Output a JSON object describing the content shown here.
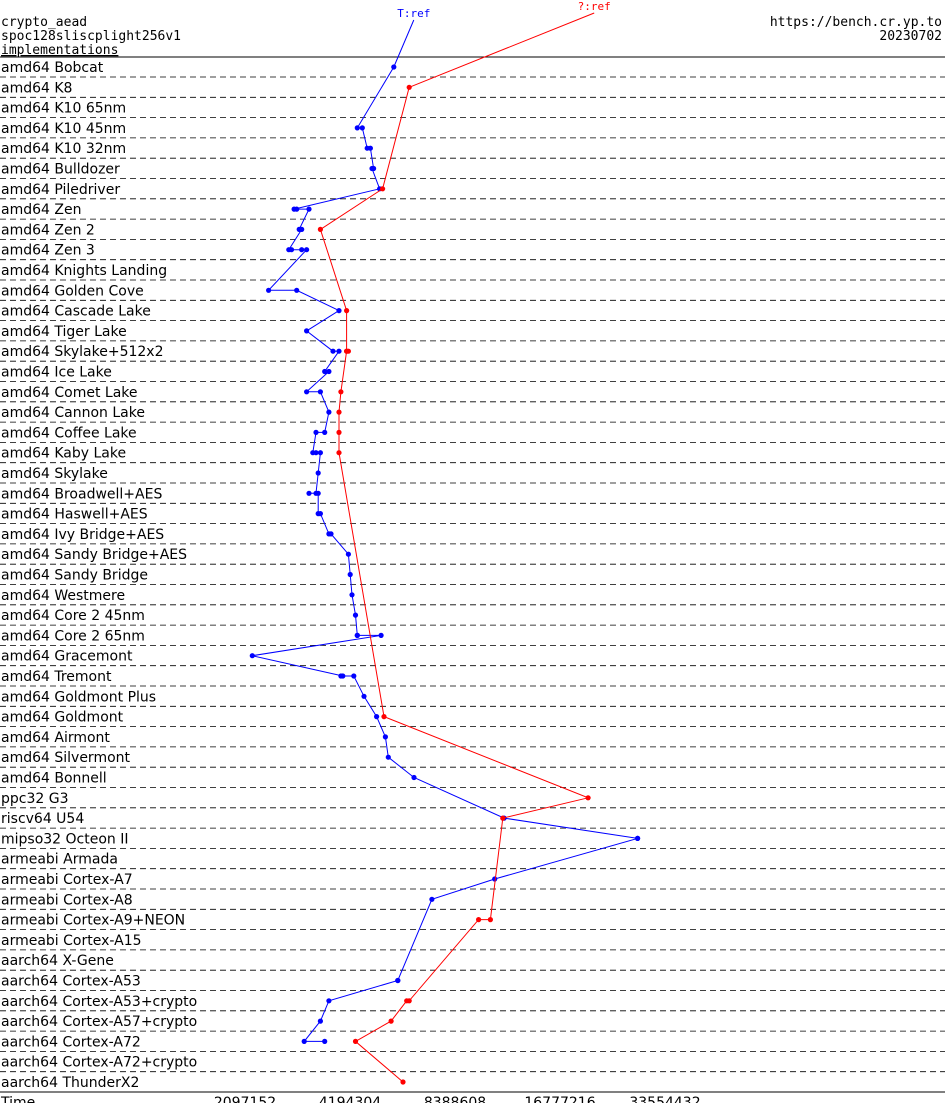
{
  "header": {
    "left_lines": [
      "crypto_aead",
      "spoc128sliscplight256v1",
      "implementations"
    ],
    "right_lines": [
      "https://bench.cr.yp.to",
      "20230702"
    ]
  },
  "chart_data": {
    "type": "line",
    "x_scale": "log2",
    "xlabel": "Time",
    "xlim": [
      1048576,
      67108864
    ],
    "x_ticks": [
      2097152,
      4194304,
      8388608,
      16777216,
      33554432
    ],
    "x_tick_labels": [
      "2097152",
      "4194304",
      "8388608",
      "16777216",
      "33554432"
    ],
    "grid": true,
    "categories": [
      "amd64 Bobcat",
      "amd64 K8",
      "amd64 K10 65nm",
      "amd64 K10 45nm",
      "amd64 K10 32nm",
      "amd64 Bulldozer",
      "amd64 Piledriver",
      "amd64 Zen",
      "amd64 Zen 2",
      "amd64 Zen 3",
      "amd64 Knights Landing",
      "amd64 Golden Cove",
      "amd64 Cascade Lake",
      "amd64 Tiger Lake",
      "amd64 Skylake+512x2",
      "amd64 Ice Lake",
      "amd64 Comet Lake",
      "amd64 Cannon Lake",
      "amd64 Coffee Lake",
      "amd64 Kaby Lake",
      "amd64 Skylake",
      "amd64 Broadwell+AES",
      "amd64 Haswell+AES",
      "amd64 Ivy Bridge+AES",
      "amd64 Sandy Bridge+AES",
      "amd64 Sandy Bridge",
      "amd64 Westmere",
      "amd64 Core 2 45nm",
      "amd64 Core 2 65nm",
      "amd64 Gracemont",
      "amd64 Tremont",
      "amd64 Goldmont Plus",
      "amd64 Goldmont",
      "amd64 Airmont",
      "amd64 Silvermont",
      "amd64 Bonnell",
      "ppc32 G3",
      "riscv64 U54",
      "mipso32 Octeon II",
      "armeabi Armada",
      "armeabi Cortex-A7",
      "armeabi Cortex-A8",
      "armeabi Cortex-A9+NEON",
      "armeabi Cortex-A15",
      "aarch64 X-Gene",
      "aarch64 Cortex-A53",
      "aarch64 Cortex-A53+crypto",
      "aarch64 Cortex-A57+crypto",
      "aarch64 Cortex-A72",
      "aarch64 Cortex-A72+crypto",
      "aarch64 ThunderX2"
    ],
    "series": [
      {
        "name": "T:ref",
        "color": "#0000ff",
        "points": [
          {
            "row": "amd64 Bobcat",
            "x": 5600000
          },
          {
            "row": "amd64 K10 45nm",
            "x": 4400000
          },
          {
            "row": "amd64 K10 45nm",
            "x": 4550000
          },
          {
            "row": "amd64 K10 32nm",
            "x": 4700000
          },
          {
            "row": "amd64 K10 32nm",
            "x": 4800000
          },
          {
            "row": "amd64 Bulldozer",
            "x": 4900000
          },
          {
            "row": "amd64 Bulldozer",
            "x": 4850000
          },
          {
            "row": "amd64 Piledriver",
            "x": 5100000
          },
          {
            "row": "amd64 Zen",
            "x": 2900000
          },
          {
            "row": "amd64 Zen",
            "x": 2950000
          },
          {
            "row": "amd64 Zen",
            "x": 3200000
          },
          {
            "row": "amd64 Zen 2",
            "x": 3000000
          },
          {
            "row": "amd64 Zen 2",
            "x": 3050000
          },
          {
            "row": "amd64 Zen 3",
            "x": 2800000
          },
          {
            "row": "amd64 Zen 3",
            "x": 2850000
          },
          {
            "row": "amd64 Zen 3",
            "x": 3050000
          },
          {
            "row": "amd64 Zen 3",
            "x": 3150000
          },
          {
            "row": "amd64 Golden Cove",
            "x": 2450000
          },
          {
            "row": "amd64 Golden Cove",
            "x": 2950000
          },
          {
            "row": "amd64 Cascade Lake",
            "x": 3900000
          },
          {
            "row": "amd64 Tiger Lake",
            "x": 3150000
          },
          {
            "row": "amd64 Skylake+512x2",
            "x": 3750000
          },
          {
            "row": "amd64 Skylake+512x2",
            "x": 3900000
          },
          {
            "row": "amd64 Ice Lake",
            "x": 3550000
          },
          {
            "row": "amd64 Ice Lake",
            "x": 3650000
          },
          {
            "row": "amd64 Comet Lake",
            "x": 3150000
          },
          {
            "row": "amd64 Comet Lake",
            "x": 3450000
          },
          {
            "row": "amd64 Cannon Lake",
            "x": 3650000
          },
          {
            "row": "amd64 Coffee Lake",
            "x": 3550000
          },
          {
            "row": "amd64 Coffee Lake",
            "x": 3350000
          },
          {
            "row": "amd64 Kaby Lake",
            "x": 3280000
          },
          {
            "row": "amd64 Kaby Lake",
            "x": 3350000
          },
          {
            "row": "amd64 Kaby Lake",
            "x": 3450000
          },
          {
            "row": "amd64 Skylake",
            "x": 3400000
          },
          {
            "row": "amd64 Broadwell+AES",
            "x": 3350000
          },
          {
            "row": "amd64 Broadwell+AES",
            "x": 3200000
          },
          {
            "row": "amd64 Broadwell+AES",
            "x": 3400000
          },
          {
            "row": "amd64 Haswell+AES",
            "x": 3400000
          },
          {
            "row": "amd64 Haswell+AES",
            "x": 3450000
          },
          {
            "row": "amd64 Ivy Bridge+AES",
            "x": 3650000
          },
          {
            "row": "amd64 Ivy Bridge+AES",
            "x": 3700000
          },
          {
            "row": "amd64 Sandy Bridge+AES",
            "x": 4150000
          },
          {
            "row": "amd64 Sandy Bridge",
            "x": 4200000
          },
          {
            "row": "amd64 Westmere",
            "x": 4250000
          },
          {
            "row": "amd64 Core 2 45nm",
            "x": 4350000
          },
          {
            "row": "amd64 Core 2 65nm",
            "x": 4400000
          },
          {
            "row": "amd64 Core 2 65nm",
            "x": 4400000
          },
          {
            "row": "amd64 Core 2 65nm",
            "x": 5150000
          },
          {
            "row": "amd64 Gracemont",
            "x": 2200000
          },
          {
            "row": "amd64 Tremont",
            "x": 4000000
          },
          {
            "row": "amd64 Tremont",
            "x": 3950000
          },
          {
            "row": "amd64 Tremont",
            "x": 4300000
          },
          {
            "row": "amd64 Goldmont Plus",
            "x": 4600000
          },
          {
            "row": "amd64 Goldmont",
            "x": 5000000
          },
          {
            "row": "amd64 Airmont",
            "x": 5300000
          },
          {
            "row": "amd64 Silvermont",
            "x": 5400000
          },
          {
            "row": "amd64 Bonnell",
            "x": 6400000
          },
          {
            "row": "riscv64 U54",
            "x": 11600000
          },
          {
            "row": "mipso32 Octeon II",
            "x": 28000000
          },
          {
            "row": "mipso32 Octeon II",
            "x": 28000000
          },
          {
            "row": "armeabi Cortex-A7",
            "x": 10900000
          },
          {
            "row": "armeabi Cortex-A8",
            "x": 7200000
          },
          {
            "row": "aarch64 Cortex-A53",
            "x": 5750000
          },
          {
            "row": "aarch64 Cortex-A53",
            "x": 5750000
          },
          {
            "row": "aarch64 Cortex-A53+crypto",
            "x": 3650000
          },
          {
            "row": "aarch64 Cortex-A57+crypto",
            "x": 3450000
          },
          {
            "row": "aarch64 Cortex-A72",
            "x": 3100000
          },
          {
            "row": "aarch64 Cortex-A72",
            "x": 3550000
          }
        ]
      },
      {
        "name": "?:ref",
        "color": "#ff0000",
        "points": [
          {
            "row": "amd64 K8",
            "x": 6200000
          },
          {
            "row": "amd64 Piledriver",
            "x": 5200000
          },
          {
            "row": "amd64 Zen 2",
            "x": 3450000
          },
          {
            "row": "amd64 Cascade Lake",
            "x": 4100000
          },
          {
            "row": "amd64 Skylake+512x2",
            "x": 4100000
          },
          {
            "row": "amd64 Skylake+512x2",
            "x": 4150000
          },
          {
            "row": "amd64 Skylake+512x2",
            "x": 4100000
          },
          {
            "row": "amd64 Comet Lake",
            "x": 3950000
          },
          {
            "row": "amd64 Cannon Lake",
            "x": 3900000
          },
          {
            "row": "amd64 Coffee Lake",
            "x": 3900000
          },
          {
            "row": "amd64 Kaby Lake",
            "x": 3900000
          },
          {
            "row": "amd64 Goldmont",
            "x": 5250000
          },
          {
            "row": "ppc32 G3",
            "x": 20200000
          },
          {
            "row": "riscv64 U54",
            "x": 11500000
          },
          {
            "row": "armeabi Cortex-A9+NEON",
            "x": 10600000
          },
          {
            "row": "armeabi Cortex-A9+NEON",
            "x": 9800000
          },
          {
            "row": "aarch64 Cortex-A53+crypto",
            "x": 6200000
          },
          {
            "row": "aarch64 Cortex-A53+crypto",
            "x": 6100000
          },
          {
            "row": "aarch64 Cortex-A57+crypto",
            "x": 5500000
          },
          {
            "row": "aarch64 Cortex-A72",
            "x": 4350000
          },
          {
            "row": "aarch64 ThunderX2",
            "x": 5950000
          }
        ]
      }
    ]
  }
}
